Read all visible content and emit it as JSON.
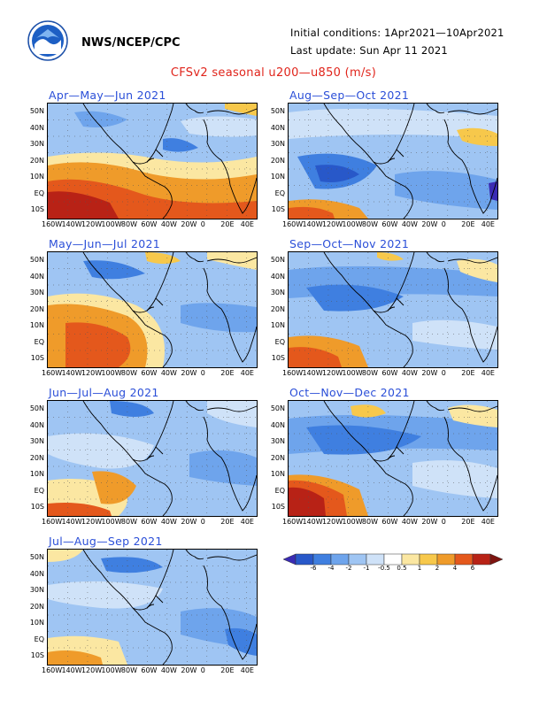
{
  "header": {
    "org": "NWS/NCEP/CPC",
    "initial_conditions": "Initial conditions: 1Apr2021—10Apr2021",
    "last_update": "Last update: Sun Apr 11 2021",
    "title": "CFSv2 seasonal u200—u850 (m/s)",
    "logo_icon": "noaa-logo-icon"
  },
  "axes": {
    "lat_labels": [
      "50N",
      "40N",
      "30N",
      "20N",
      "10N",
      "EQ",
      "10S"
    ],
    "lon_labels": [
      "160W",
      "140W",
      "120W",
      "100W",
      "80W",
      "60W",
      "40W",
      "20W",
      "0",
      "20E",
      "40E"
    ]
  },
  "panels": [
    {
      "title": "Apr—May—Jun 2021"
    },
    {
      "title": "Aug—Sep—Oct 2021"
    },
    {
      "title": "May—Jun—Jul 2021"
    },
    {
      "title": "Sep—Oct—Nov 2021"
    },
    {
      "title": "Jun—Jul—Aug 2021"
    },
    {
      "title": "Oct—Nov—Dec 2021"
    },
    {
      "title": "Jul—Aug—Sep 2021"
    }
  ],
  "colorbar": {
    "labels": [
      "-6",
      "-4",
      "-2",
      "-1",
      "-0.5",
      "0.5",
      "1",
      "2",
      "4",
      "6"
    ],
    "colors": [
      "#3a2bb4",
      "#2858c9",
      "#3f7fe0",
      "#6ea4ec",
      "#9fc5f3",
      "#cfe2f8",
      "#ffffff",
      "#fbe7a2",
      "#f7c84b",
      "#ef9b2a",
      "#e4581c",
      "#b82216",
      "#7e1410"
    ]
  }
}
